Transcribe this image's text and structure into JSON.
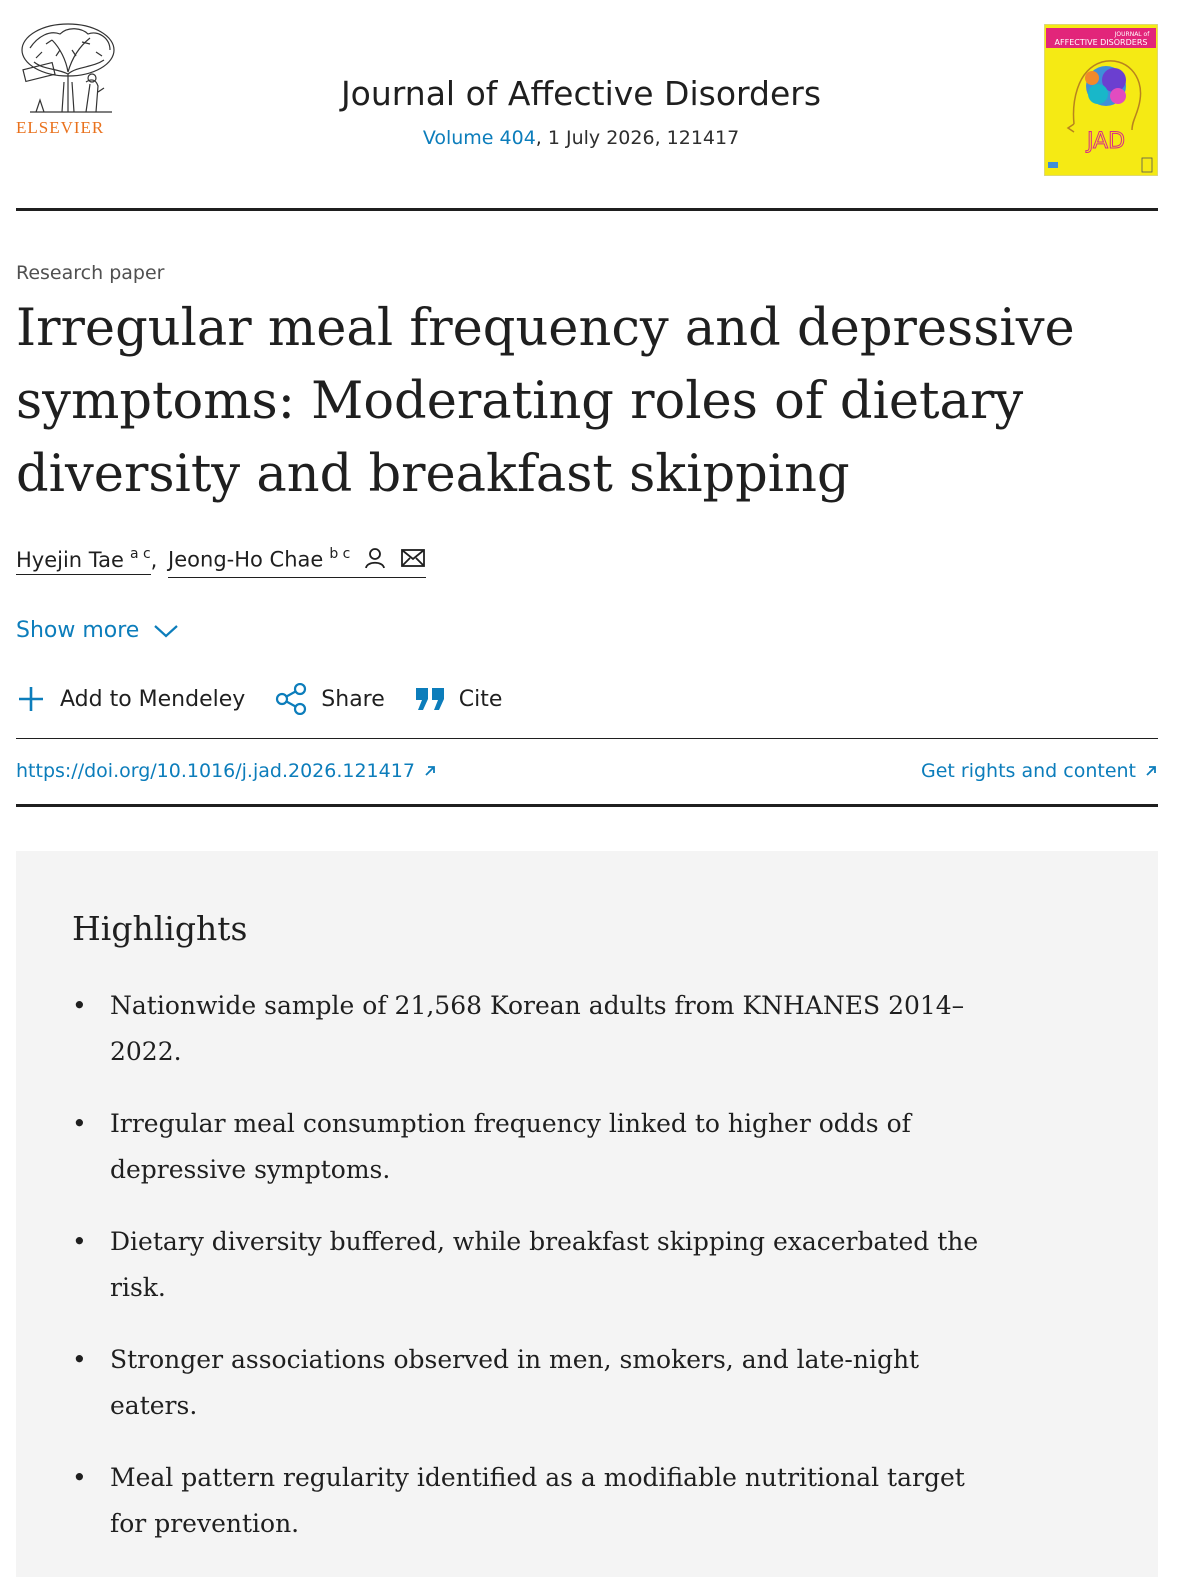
{
  "header": {
    "publisher": "ELSEVIER",
    "journal_title": "Journal of Affective Disorders",
    "volume_link": "Volume 404",
    "issue_rest": ", 1 July 2026, 121417",
    "cover": {
      "title_small": "JOURNAL of",
      "title_big": "AFFECTIVE DISORDERS",
      "abbr": "JAD",
      "bg_color": "#f5ea14",
      "band_color": "#e2257a"
    }
  },
  "article": {
    "type": "Research paper",
    "title": "Irregular meal frequency and depressive symptoms: Moderating roles of dietary diversity and breakfast skipping",
    "authors": [
      {
        "name": "Hyejin Tae",
        "affil": "a c"
      },
      {
        "name": "Jeong-Ho Chae",
        "affil": "b c"
      }
    ],
    "author_separator": ","
  },
  "show_more_label": "Show more",
  "toolbar": {
    "add_mendeley": "Add to Mendeley",
    "share": "Share",
    "cite": "Cite"
  },
  "links": {
    "doi": "https://doi.org/10.1016/j.jad.2026.121417",
    "rights": "Get rights and content"
  },
  "highlights": {
    "heading": "Highlights",
    "items": [
      "Nationwide sample of 21,568 Korean adults from KNHANES 2014–2022.",
      "Irregular meal consumption frequency linked to higher odds of depressive symptoms.",
      "Dietary diversity buffered, while breakfast skipping exacerbated the risk.",
      "Stronger associations observed in men, smokers, and late-night eaters.",
      "Meal pattern regularity identified as a modifiable nutritional target for prevention."
    ],
    "bullet": "•"
  },
  "colors": {
    "link_blue": "#0c7dbb",
    "elsevier_orange": "#e9711c",
    "highlights_bg": "#f4f4f4"
  }
}
